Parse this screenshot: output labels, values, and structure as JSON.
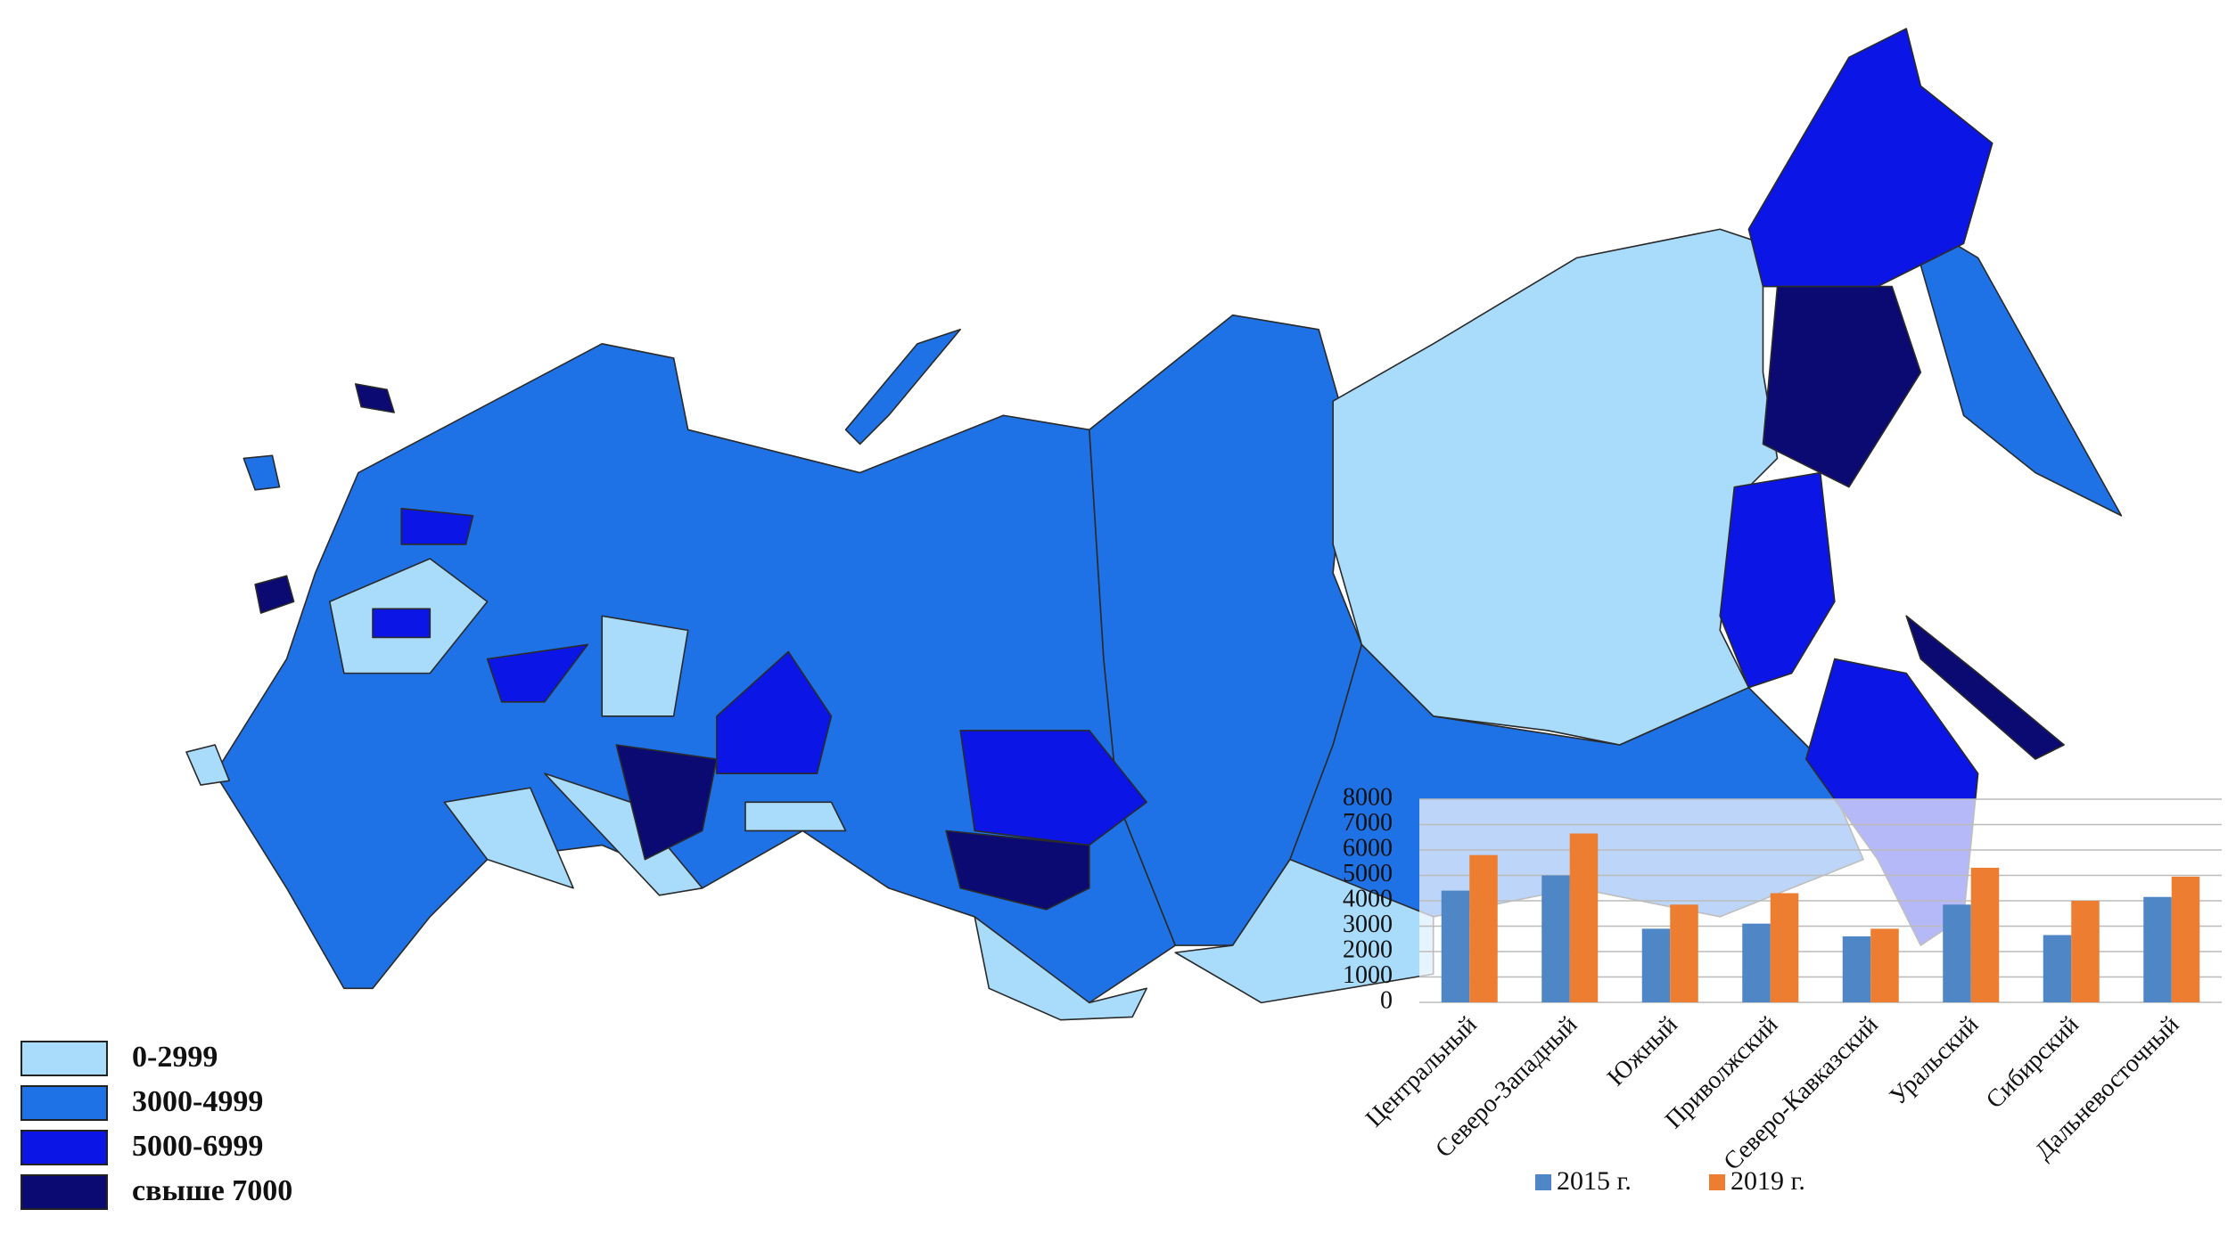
{
  "map_legend": [
    {
      "label": "0-2999",
      "color": "#a9dbfb"
    },
    {
      "label": "3000-4999",
      "color": "#1f72e6"
    },
    {
      "label": "5000-6999",
      "color": "#0b16e6"
    },
    {
      "label": "свыше 7000",
      "color": "#0a0a72"
    }
  ],
  "chart_data": {
    "type": "bar",
    "categories": [
      "Центральный",
      "Северо-Западный",
      "Южный",
      "Приволжский",
      "Северо-Кавказский",
      "Уральский",
      "Сибирский",
      "Дальневосточный"
    ],
    "series": [
      {
        "name": "2015 г.",
        "color": "#4f86c6",
        "values": [
          4400,
          5000,
          2900,
          3100,
          2600,
          3850,
          2650,
          4150
        ]
      },
      {
        "name": "2019 г.",
        "color": "#ed7d31",
        "values": [
          5800,
          6650,
          3850,
          4300,
          2900,
          5300,
          4000,
          4950
        ]
      }
    ],
    "ylim": [
      0,
      8000
    ],
    "yticks": [
      0,
      1000,
      2000,
      3000,
      4000,
      5000,
      6000,
      7000,
      8000
    ],
    "grid": true
  }
}
